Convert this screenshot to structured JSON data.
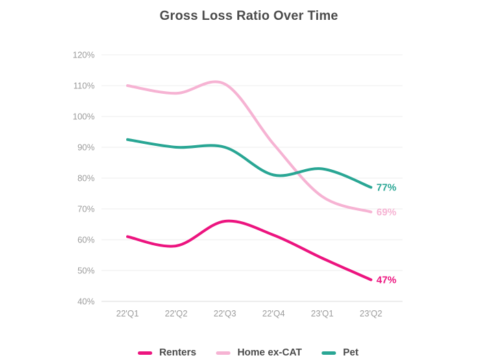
{
  "chart_data": {
    "type": "line",
    "title": "Gross Loss Ratio Over Time",
    "categories": [
      "22'Q1",
      "22'Q2",
      "22'Q3",
      "22'Q4",
      "23'Q1",
      "23'Q2"
    ],
    "series": [
      {
        "name": "Renters",
        "color": "#EC147F",
        "values": [
          61,
          58,
          66,
          61.5,
          54,
          47
        ],
        "end_label": "47%"
      },
      {
        "name": "Home ex-CAT",
        "color": "#F6B3D3",
        "values": [
          110,
          107.5,
          110.5,
          91,
          74,
          69
        ],
        "end_label": "69%"
      },
      {
        "name": "Pet",
        "color": "#29A694",
        "values": [
          92.5,
          90,
          90,
          81,
          83,
          77
        ],
        "end_label": "77%"
      }
    ],
    "ylim": [
      40,
      120
    ],
    "ytick_step": 10,
    "ytick_suffix": "%",
    "xlabel": "",
    "ylabel": "",
    "grid": true,
    "legend_position": "bottom",
    "colors": {
      "title_text": "#4A4A4A",
      "axis_text": "#9B9B9B",
      "gridline": "#ECECEC",
      "axis_line": "#D8D8D8",
      "background": "#FFFFFF"
    }
  }
}
